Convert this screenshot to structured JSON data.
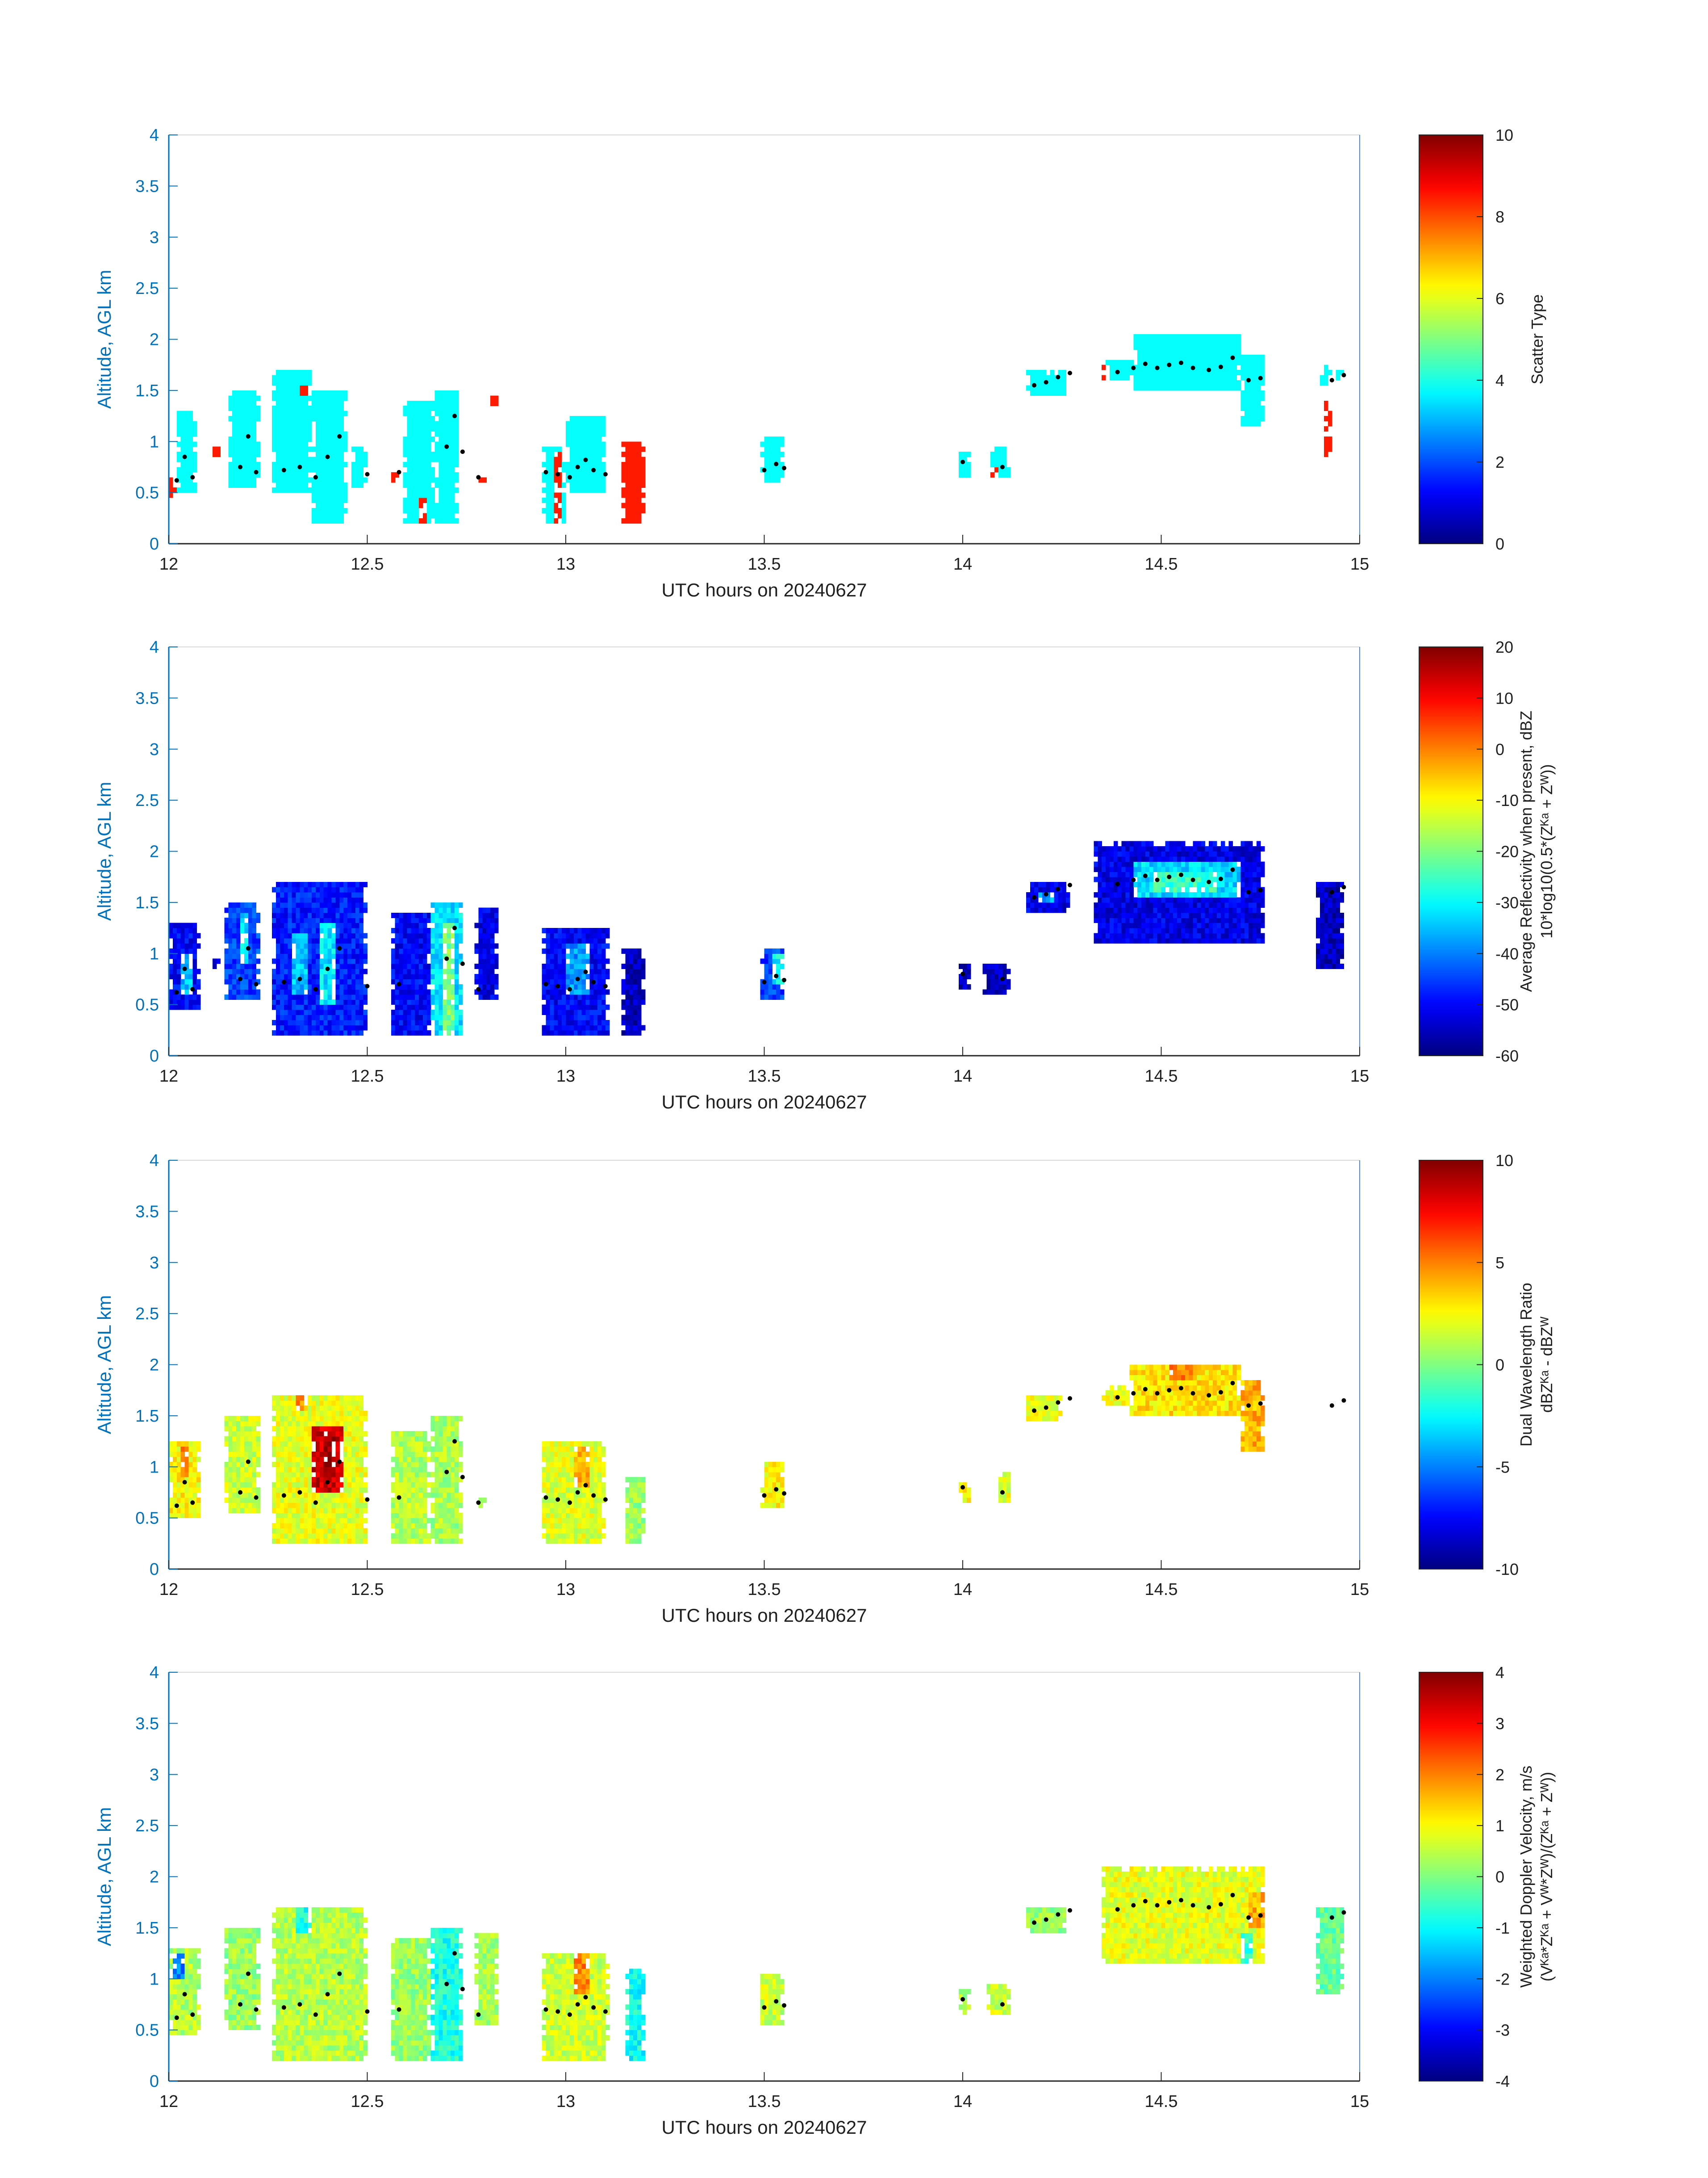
{
  "chart_data": [
    {
      "type": "heatmap",
      "xlabel": "UTC hours on 20240627",
      "ylabel": "Altitude, AGL km",
      "xlim": [
        12,
        15
      ],
      "ylim": [
        0,
        4
      ],
      "xticks": [
        "12",
        "12.5",
        "13",
        "13.5",
        "14",
        "14.5",
        "15"
      ],
      "yticks": [
        "0",
        "0.5",
        "1",
        "1.5",
        "2",
        "2.5",
        "3",
        "3.5",
        "4"
      ],
      "colorbar": {
        "label_lines": [
          "Scatter Type"
        ],
        "range": [
          0,
          10
        ],
        "ticks": [
          "0",
          "2",
          "4",
          "6",
          "8",
          "10"
        ]
      },
      "default_value": 3.8,
      "blobs": [
        {
          "t0": 12.0,
          "t1": 12.02,
          "z0": 0.45,
          "z1": 0.65,
          "v": 8.5
        },
        {
          "t0": 12.02,
          "t1": 12.07,
          "z0": 0.5,
          "z1": 1.3,
          "v": 3.8
        },
        {
          "t0": 12.11,
          "t1": 12.13,
          "z0": 0.85,
          "z1": 0.95,
          "v": 8.5
        },
        {
          "t0": 12.15,
          "t1": 12.23,
          "z0": 0.55,
          "z1": 1.5,
          "v": 3.8
        },
        {
          "t0": 12.26,
          "t1": 12.36,
          "z0": 0.5,
          "z1": 1.72,
          "v": 3.8
        },
        {
          "t0": 12.33,
          "t1": 12.35,
          "z0": 1.45,
          "z1": 1.55,
          "v": 8.5
        },
        {
          "t0": 12.36,
          "t1": 12.45,
          "z0": 0.2,
          "z1": 1.5,
          "v": 3.8
        },
        {
          "t0": 12.46,
          "t1": 12.5,
          "z0": 0.55,
          "z1": 0.95,
          "v": 3.8
        },
        {
          "t0": 12.56,
          "t1": 12.58,
          "z0": 0.6,
          "z1": 0.75,
          "v": 8.5
        },
        {
          "t0": 12.59,
          "t1": 12.61,
          "z0": 0.45,
          "z1": 0.7,
          "v": 8.5
        },
        {
          "t0": 12.59,
          "t1": 12.67,
          "z0": 0.2,
          "z1": 1.4,
          "v": 3.8
        },
        {
          "t0": 12.63,
          "t1": 12.65,
          "z0": 0.2,
          "z1": 0.45,
          "v": 8.5
        },
        {
          "t0": 12.67,
          "t1": 12.73,
          "z0": 0.2,
          "z1": 1.5,
          "v": 3.8
        },
        {
          "t0": 12.78,
          "t1": 12.8,
          "z0": 0.6,
          "z1": 0.7,
          "v": 8.5
        },
        {
          "t0": 12.81,
          "t1": 12.83,
          "z0": 1.35,
          "z1": 1.45,
          "v": 8.5
        },
        {
          "t0": 12.94,
          "t1": 13.0,
          "z0": 0.2,
          "z1": 0.95,
          "v": 3.8
        },
        {
          "t0": 12.97,
          "t1": 12.99,
          "z0": 0.2,
          "z1": 0.9,
          "v": 8.5
        },
        {
          "t0": 13.0,
          "t1": 13.1,
          "z0": 0.5,
          "z1": 1.25,
          "v": 3.8
        },
        {
          "t0": 13.14,
          "t1": 13.2,
          "z0": 0.2,
          "z1": 1.0,
          "v": 8.5
        },
        {
          "t0": 13.49,
          "t1": 13.55,
          "z0": 0.6,
          "z1": 1.05,
          "v": 3.8
        },
        {
          "t0": 13.99,
          "t1": 14.02,
          "z0": 0.65,
          "z1": 0.9,
          "v": 3.8
        },
        {
          "t0": 14.07,
          "t1": 14.12,
          "z0": 0.65,
          "z1": 0.95,
          "v": 3.8
        },
        {
          "t0": 14.07,
          "t1": 14.09,
          "z0": 0.65,
          "z1": 0.75,
          "v": 8.5
        },
        {
          "t0": 14.16,
          "t1": 14.18,
          "z0": 1.5,
          "z1": 1.62,
          "v": 8.5
        },
        {
          "t0": 14.16,
          "t1": 14.26,
          "z0": 1.45,
          "z1": 1.68,
          "v": 3.8
        },
        {
          "t0": 14.34,
          "t1": 14.36,
          "z0": 1.6,
          "z1": 1.75,
          "v": 8.5
        },
        {
          "t0": 14.36,
          "t1": 14.43,
          "z0": 1.6,
          "z1": 1.8,
          "v": 3.8
        },
        {
          "t0": 14.43,
          "t1": 14.7,
          "z0": 1.5,
          "z1": 2.05,
          "v": 3.8
        },
        {
          "t0": 14.7,
          "t1": 14.76,
          "z0": 1.15,
          "z1": 1.85,
          "v": 3.8
        },
        {
          "t0": 14.9,
          "t1": 14.93,
          "z0": 1.55,
          "z1": 1.75,
          "v": 3.8
        },
        {
          "t0": 14.91,
          "t1": 14.93,
          "z0": 0.85,
          "z1": 1.4,
          "v": 8.5
        },
        {
          "t0": 14.94,
          "t1": 14.96,
          "z0": 1.6,
          "z1": 1.7,
          "v": 3.8
        }
      ]
    },
    {
      "type": "heatmap",
      "xlabel": "UTC hours on 20240627",
      "ylabel": "Altitude, AGL km",
      "xlim": [
        12,
        15
      ],
      "ylim": [
        0,
        4
      ],
      "xticks": [
        "12",
        "12.5",
        "13",
        "13.5",
        "14",
        "14.5",
        "15"
      ],
      "yticks": [
        "0",
        "0.5",
        "1",
        "1.5",
        "2",
        "2.5",
        "3",
        "3.5",
        "4"
      ],
      "colorbar": {
        "label_lines": [
          "Average Reflectivity when present, dBZ",
          "10*log10(0.5*(Zᴷᵃ + Zᵂ))"
        ],
        "range": [
          -60,
          20
        ],
        "ticks": [
          "-60",
          "-50",
          "-40",
          "-30",
          "-20",
          "-10",
          "0",
          "10",
          "20"
        ]
      },
      "default_value": -52,
      "blobs": [
        {
          "t0": 12.0,
          "t1": 12.08,
          "z0": 0.45,
          "z1": 1.3,
          "v": -50
        },
        {
          "t0": 12.03,
          "t1": 12.06,
          "z0": 0.6,
          "z1": 1.0,
          "v": -35
        },
        {
          "t0": 12.11,
          "t1": 12.13,
          "z0": 0.85,
          "z1": 1.0,
          "v": -52
        },
        {
          "t0": 12.14,
          "t1": 12.23,
          "z0": 0.55,
          "z1": 1.5,
          "v": -45
        },
        {
          "t0": 12.18,
          "t1": 12.2,
          "z0": 0.9,
          "z1": 1.4,
          "v": -32
        },
        {
          "t0": 12.26,
          "t1": 12.5,
          "z0": 0.2,
          "z1": 1.72,
          "v": -48
        },
        {
          "t0": 12.31,
          "t1": 12.35,
          "z0": 0.6,
          "z1": 1.2,
          "v": -35
        },
        {
          "t0": 12.38,
          "t1": 12.42,
          "z0": 0.5,
          "z1": 1.3,
          "v": -32
        },
        {
          "t0": 12.56,
          "t1": 12.66,
          "z0": 0.2,
          "z1": 1.4,
          "v": -50
        },
        {
          "t0": 12.66,
          "t1": 12.74,
          "z0": 0.2,
          "z1": 1.5,
          "v": -32
        },
        {
          "t0": 12.69,
          "t1": 12.72,
          "z0": 0.2,
          "z1": 1.3,
          "v": -20
        },
        {
          "t0": 12.77,
          "t1": 12.83,
          "z0": 0.55,
          "z1": 1.45,
          "v": -52
        },
        {
          "t0": 12.94,
          "t1": 13.11,
          "z0": 0.2,
          "z1": 1.25,
          "v": -50
        },
        {
          "t0": 13.0,
          "t1": 13.06,
          "z0": 0.6,
          "z1": 1.1,
          "v": -38
        },
        {
          "t0": 13.14,
          "t1": 13.2,
          "z0": 0.2,
          "z1": 1.05,
          "v": -55
        },
        {
          "t0": 13.49,
          "t1": 13.55,
          "z0": 0.55,
          "z1": 1.05,
          "v": -45
        },
        {
          "t0": 13.52,
          "t1": 13.55,
          "z0": 0.7,
          "z1": 1.0,
          "v": -30
        },
        {
          "t0": 13.99,
          "t1": 14.02,
          "z0": 0.65,
          "z1": 0.9,
          "v": -55
        },
        {
          "t0": 14.05,
          "t1": 14.12,
          "z0": 0.6,
          "z1": 0.9,
          "v": -55
        },
        {
          "t0": 14.16,
          "t1": 14.27,
          "z0": 1.4,
          "z1": 1.72,
          "v": -52
        },
        {
          "t0": 14.19,
          "t1": 14.23,
          "z0": 1.5,
          "z1": 1.6,
          "v": -38
        },
        {
          "t0": 14.33,
          "t1": 14.76,
          "z0": 1.1,
          "z1": 2.08,
          "v": -52
        },
        {
          "t0": 14.43,
          "t1": 14.7,
          "z0": 1.55,
          "z1": 1.9,
          "v": -33
        },
        {
          "t0": 14.48,
          "t1": 14.64,
          "z0": 1.62,
          "z1": 1.8,
          "v": -26
        },
        {
          "t0": 14.89,
          "t1": 14.96,
          "z0": 0.85,
          "z1": 1.72,
          "v": -55
        }
      ]
    },
    {
      "type": "heatmap",
      "xlabel": "UTC hours on 20240627",
      "ylabel": "Altitude, AGL km",
      "xlim": [
        12,
        15
      ],
      "ylim": [
        0,
        4
      ],
      "xticks": [
        "12",
        "12.5",
        "13",
        "13.5",
        "14",
        "14.5",
        "15"
      ],
      "yticks": [
        "0",
        "0.5",
        "1",
        "1.5",
        "2",
        "2.5",
        "3",
        "3.5",
        "4"
      ],
      "colorbar": {
        "label_lines": [
          "Dual Wavelength Ratio",
          "dBZᴷᵃ - dBZᵂ"
        ],
        "range": [
          -10,
          10
        ],
        "ticks": [
          "-10",
          "-5",
          "0",
          "5",
          "10"
        ]
      },
      "default_value": 2,
      "blobs": [
        {
          "t0": 12.0,
          "t1": 12.08,
          "z0": 0.5,
          "z1": 1.25,
          "v": 2.5
        },
        {
          "t0": 12.03,
          "t1": 12.05,
          "z0": 0.9,
          "z1": 1.2,
          "v": 5
        },
        {
          "t0": 12.14,
          "t1": 12.23,
          "z0": 0.55,
          "z1": 1.5,
          "v": 1.5
        },
        {
          "t0": 12.26,
          "t1": 12.5,
          "z0": 0.25,
          "z1": 1.72,
          "v": 2
        },
        {
          "t0": 12.36,
          "t1": 12.44,
          "z0": 0.75,
          "z1": 1.4,
          "v": 8.5
        },
        {
          "t0": 12.39,
          "t1": 12.42,
          "z0": 1.0,
          "z1": 1.35,
          "v": 9.8
        },
        {
          "t0": 12.32,
          "t1": 12.35,
          "z0": 1.55,
          "z1": 1.72,
          "v": 4.5
        },
        {
          "t0": 12.56,
          "t1": 12.66,
          "z0": 0.25,
          "z1": 1.35,
          "v": 1
        },
        {
          "t0": 12.66,
          "t1": 12.74,
          "z0": 0.25,
          "z1": 1.5,
          "v": 0.8
        },
        {
          "t0": 12.78,
          "t1": 12.8,
          "z0": 0.6,
          "z1": 0.7,
          "v": 0
        },
        {
          "t0": 12.94,
          "t1": 13.1,
          "z0": 0.25,
          "z1": 1.25,
          "v": 1.8
        },
        {
          "t0": 13.02,
          "t1": 13.06,
          "z0": 0.8,
          "z1": 1.2,
          "v": 4
        },
        {
          "t0": 13.15,
          "t1": 13.2,
          "z0": 0.25,
          "z1": 0.9,
          "v": 0.5
        },
        {
          "t0": 13.49,
          "t1": 13.55,
          "z0": 0.6,
          "z1": 1.05,
          "v": 2.5
        },
        {
          "t0": 13.99,
          "t1": 14.02,
          "z0": 0.65,
          "z1": 0.85,
          "v": 2.5
        },
        {
          "t0": 14.09,
          "t1": 14.12,
          "z0": 0.65,
          "z1": 0.95,
          "v": 2
        },
        {
          "t0": 14.16,
          "t1": 14.25,
          "z0": 1.45,
          "z1": 1.72,
          "v": 2
        },
        {
          "t0": 14.35,
          "t1": 14.43,
          "z0": 1.6,
          "z1": 1.78,
          "v": 2.5
        },
        {
          "t0": 14.42,
          "t1": 14.7,
          "z0": 1.5,
          "z1": 2.02,
          "v": 3
        },
        {
          "t0": 14.52,
          "t1": 14.58,
          "z0": 1.85,
          "z1": 2.02,
          "v": 5
        },
        {
          "t0": 14.7,
          "t1": 14.76,
          "z0": 1.15,
          "z1": 1.85,
          "v": 4
        }
      ]
    },
    {
      "type": "heatmap",
      "xlabel": "UTC hours on 20240627",
      "ylabel": "Altitude, AGL km",
      "xlim": [
        12,
        15
      ],
      "ylim": [
        0,
        4
      ],
      "xticks": [
        "12",
        "12.5",
        "13",
        "13.5",
        "14",
        "14.5",
        "15"
      ],
      "yticks": [
        "0",
        "0.5",
        "1",
        "1.5",
        "2",
        "2.5",
        "3",
        "3.5",
        "4"
      ],
      "colorbar": {
        "label_lines": [
          "Weighted Doppler Velocity, m/s",
          "(Vᴷᵃ*Zᴷᵃ + Vᵂ*Zᵂ)/(Zᴷᵃ + Zᵂ))"
        ],
        "range": [
          -4,
          4
        ],
        "ticks": [
          "-4",
          "-3",
          "-2",
          "-1",
          "0",
          "1",
          "2",
          "3",
          "4"
        ]
      },
      "default_value": 0.3,
      "blobs": [
        {
          "t0": 12.0,
          "t1": 12.08,
          "z0": 0.45,
          "z1": 1.3,
          "v": 0.4
        },
        {
          "t0": 12.01,
          "t1": 12.04,
          "z0": 1.0,
          "z1": 1.25,
          "v": -2
        },
        {
          "t0": 12.14,
          "t1": 12.23,
          "z0": 0.5,
          "z1": 1.5,
          "v": 0.2
        },
        {
          "t0": 12.26,
          "t1": 12.5,
          "z0": 0.2,
          "z1": 1.72,
          "v": 0.4
        },
        {
          "t0": 12.32,
          "t1": 12.36,
          "z0": 1.45,
          "z1": 1.72,
          "v": -0.8
        },
        {
          "t0": 12.56,
          "t1": 12.66,
          "z0": 0.2,
          "z1": 1.4,
          "v": 0.2
        },
        {
          "t0": 12.66,
          "t1": 12.74,
          "z0": 0.2,
          "z1": 1.5,
          "v": -0.8
        },
        {
          "t0": 12.77,
          "t1": 12.83,
          "z0": 0.55,
          "z1": 1.45,
          "v": 0.3
        },
        {
          "t0": 12.94,
          "t1": 13.11,
          "z0": 0.2,
          "z1": 1.25,
          "v": 0.6
        },
        {
          "t0": 13.02,
          "t1": 13.06,
          "z0": 0.85,
          "z1": 1.25,
          "v": 2
        },
        {
          "t0": 13.15,
          "t1": 13.2,
          "z0": 0.2,
          "z1": 1.1,
          "v": -0.9
        },
        {
          "t0": 13.49,
          "t1": 13.55,
          "z0": 0.55,
          "z1": 1.05,
          "v": 0.6
        },
        {
          "t0": 13.99,
          "t1": 14.02,
          "z0": 0.65,
          "z1": 0.9,
          "v": 0.3
        },
        {
          "t0": 14.06,
          "t1": 14.12,
          "z0": 0.65,
          "z1": 0.95,
          "v": 0.6
        },
        {
          "t0": 14.16,
          "t1": 14.26,
          "z0": 1.45,
          "z1": 1.72,
          "v": 0.2
        },
        {
          "t0": 14.35,
          "t1": 14.76,
          "z0": 1.15,
          "z1": 2.08,
          "v": 0.8
        },
        {
          "t0": 14.72,
          "t1": 14.76,
          "z0": 1.5,
          "z1": 1.85,
          "v": 1.6
        },
        {
          "t0": 14.7,
          "t1": 14.73,
          "z0": 1.15,
          "z1": 1.45,
          "v": -0.6
        },
        {
          "t0": 14.89,
          "t1": 14.96,
          "z0": 0.85,
          "z1": 1.72,
          "v": -0.2
        }
      ]
    }
  ],
  "cloud_base_markers": [
    [
      12.02,
      0.62
    ],
    [
      12.04,
      0.85
    ],
    [
      12.06,
      0.65
    ],
    [
      12.18,
      0.75
    ],
    [
      12.2,
      1.05
    ],
    [
      12.22,
      0.7
    ],
    [
      12.29,
      0.72
    ],
    [
      12.33,
      0.75
    ],
    [
      12.37,
      0.65
    ],
    [
      12.4,
      0.85
    ],
    [
      12.43,
      1.05
    ],
    [
      12.5,
      0.68
    ],
    [
      12.58,
      0.7
    ],
    [
      12.7,
      0.95
    ],
    [
      12.72,
      1.25
    ],
    [
      12.74,
      0.9
    ],
    [
      12.78,
      0.65
    ],
    [
      12.95,
      0.7
    ],
    [
      12.98,
      0.68
    ],
    [
      13.01,
      0.65
    ],
    [
      13.03,
      0.75
    ],
    [
      13.05,
      0.82
    ],
    [
      13.07,
      0.72
    ],
    [
      13.1,
      0.68
    ],
    [
      13.5,
      0.72
    ],
    [
      13.53,
      0.78
    ],
    [
      13.55,
      0.74
    ],
    [
      14.0,
      0.8
    ],
    [
      14.1,
      0.75
    ],
    [
      14.18,
      1.55
    ],
    [
      14.21,
      1.58
    ],
    [
      14.24,
      1.63
    ],
    [
      14.27,
      1.67
    ],
    [
      14.39,
      1.68
    ],
    [
      14.43,
      1.72
    ],
    [
      14.46,
      1.76
    ],
    [
      14.49,
      1.72
    ],
    [
      14.52,
      1.75
    ],
    [
      14.55,
      1.77
    ],
    [
      14.58,
      1.72
    ],
    [
      14.62,
      1.7
    ],
    [
      14.65,
      1.73
    ],
    [
      14.68,
      1.82
    ],
    [
      14.72,
      1.6
    ],
    [
      14.75,
      1.62
    ],
    [
      14.93,
      1.6
    ],
    [
      14.96,
      1.65
    ]
  ]
}
